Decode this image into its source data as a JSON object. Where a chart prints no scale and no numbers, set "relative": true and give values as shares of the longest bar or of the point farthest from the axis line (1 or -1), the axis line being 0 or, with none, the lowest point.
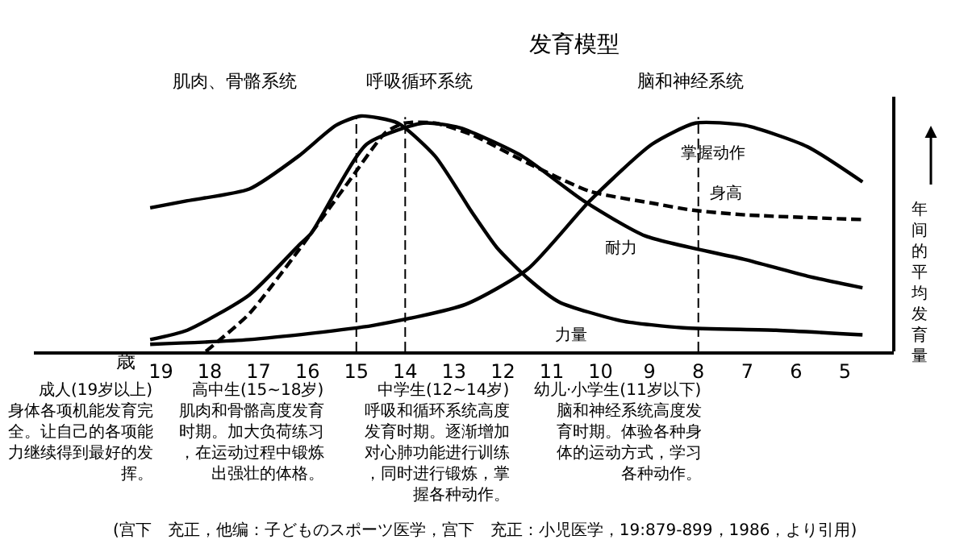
{
  "chart_data": {
    "type": "line",
    "title": "发育模型",
    "xlabel": "歳",
    "ylabel": "年间的平均发育量",
    "relative": true,
    "tick_labels": "x",
    "marker": "none",
    "xlim": [
      21.6,
      4
    ],
    "xticks": [
      19,
      18,
      17,
      16,
      15,
      14,
      13,
      12,
      11,
      10,
      9,
      8,
      7,
      6,
      5
    ],
    "series": [
      {
        "color": "#000000",
        "line_style": "solid",
        "x": [
          19.22,
          18.46,
          17.19,
          16.18,
          15.42,
          14.91,
          14.15,
          13.39,
          12.63,
          12.12,
          11.49,
          10.85,
          9.58,
          8.31,
          6.41,
          4.64
        ],
        "values": [
          0.61,
          0.64,
          0.69,
          0.83,
          0.96,
          1.0,
          0.97,
          0.83,
          0.59,
          0.44,
          0.31,
          0.21,
          0.13,
          0.1,
          0.09,
          0.07
        ]
      },
      {
        "color": "#000000",
        "line_style": "solid",
        "x": [
          19.22,
          18.46,
          17.19,
          16.18,
          15.93,
          14.79,
          13.63,
          12.88,
          11.61,
          10.35,
          9.08,
          7.04,
          5.77,
          4.64
        ],
        "values": [
          0.05,
          0.09,
          0.24,
          0.45,
          0.5,
          0.88,
          0.97,
          0.95,
          0.83,
          0.64,
          0.49,
          0.39,
          0.32,
          0.27
        ]
      },
      {
        "color": "#000000",
        "line_style": "dashed",
        "x": [
          18.08,
          17.19,
          16.18,
          15.16,
          14.4,
          14.02,
          13.39,
          12.63,
          11.49,
          10.22,
          8.95,
          8.12,
          7.04,
          4.64
        ],
        "values": [
          0.0,
          0.16,
          0.43,
          0.72,
          0.93,
          0.97,
          0.97,
          0.92,
          0.8,
          0.68,
          0.63,
          0.6,
          0.58,
          0.56
        ]
      },
      {
        "color": "#000000",
        "line_style": "solid",
        "x": [
          19.22,
          17.19,
          14.66,
          12.76,
          11.49,
          10.22,
          8.95,
          8.06,
          7.04,
          5.77,
          4.64
        ],
        "values": [
          0.03,
          0.05,
          0.11,
          0.2,
          0.35,
          0.64,
          0.88,
          0.97,
          0.96,
          0.87,
          0.72
        ]
      }
    ],
    "ref_lines": [
      {
        "axis": "x",
        "value": 15,
        "line_style": "dashed"
      },
      {
        "axis": "x",
        "value": 14,
        "line_style": "dashed"
      },
      {
        "axis": "x",
        "value": 8,
        "line_style": "dashed"
      }
    ],
    "annotations": [
      "掌握动作",
      "身高",
      "耐力",
      "力量",
      "肌肉、骨骼系统",
      "呼吸循环系统",
      "脑和神经系统",
      "成人(19岁以上)",
      "身体各项机能发育完全。让自己的各项能力继续得到最好的发挥。",
      "高中生(15~18岁)",
      "肌肉和骨骼高度发育时期。加大负荷练习，在运动过程中锻炼出强壮的体格。",
      "中学生(12~14岁)",
      "呼吸和循环系统高度发育时期。逐渐增加对心肺功能进行训练，同时进行锻炼，掌握各种动作。",
      "幼儿·小学生(11岁以下)",
      "脑和神经系统高度发育时期。体验各种身体的运动方式，学习各种动作。",
      "(宫下　充正，他编：子どものスポーツ医学，宫下　充正：小児医学，19:879-899，1986，より引用)"
    ]
  }
}
